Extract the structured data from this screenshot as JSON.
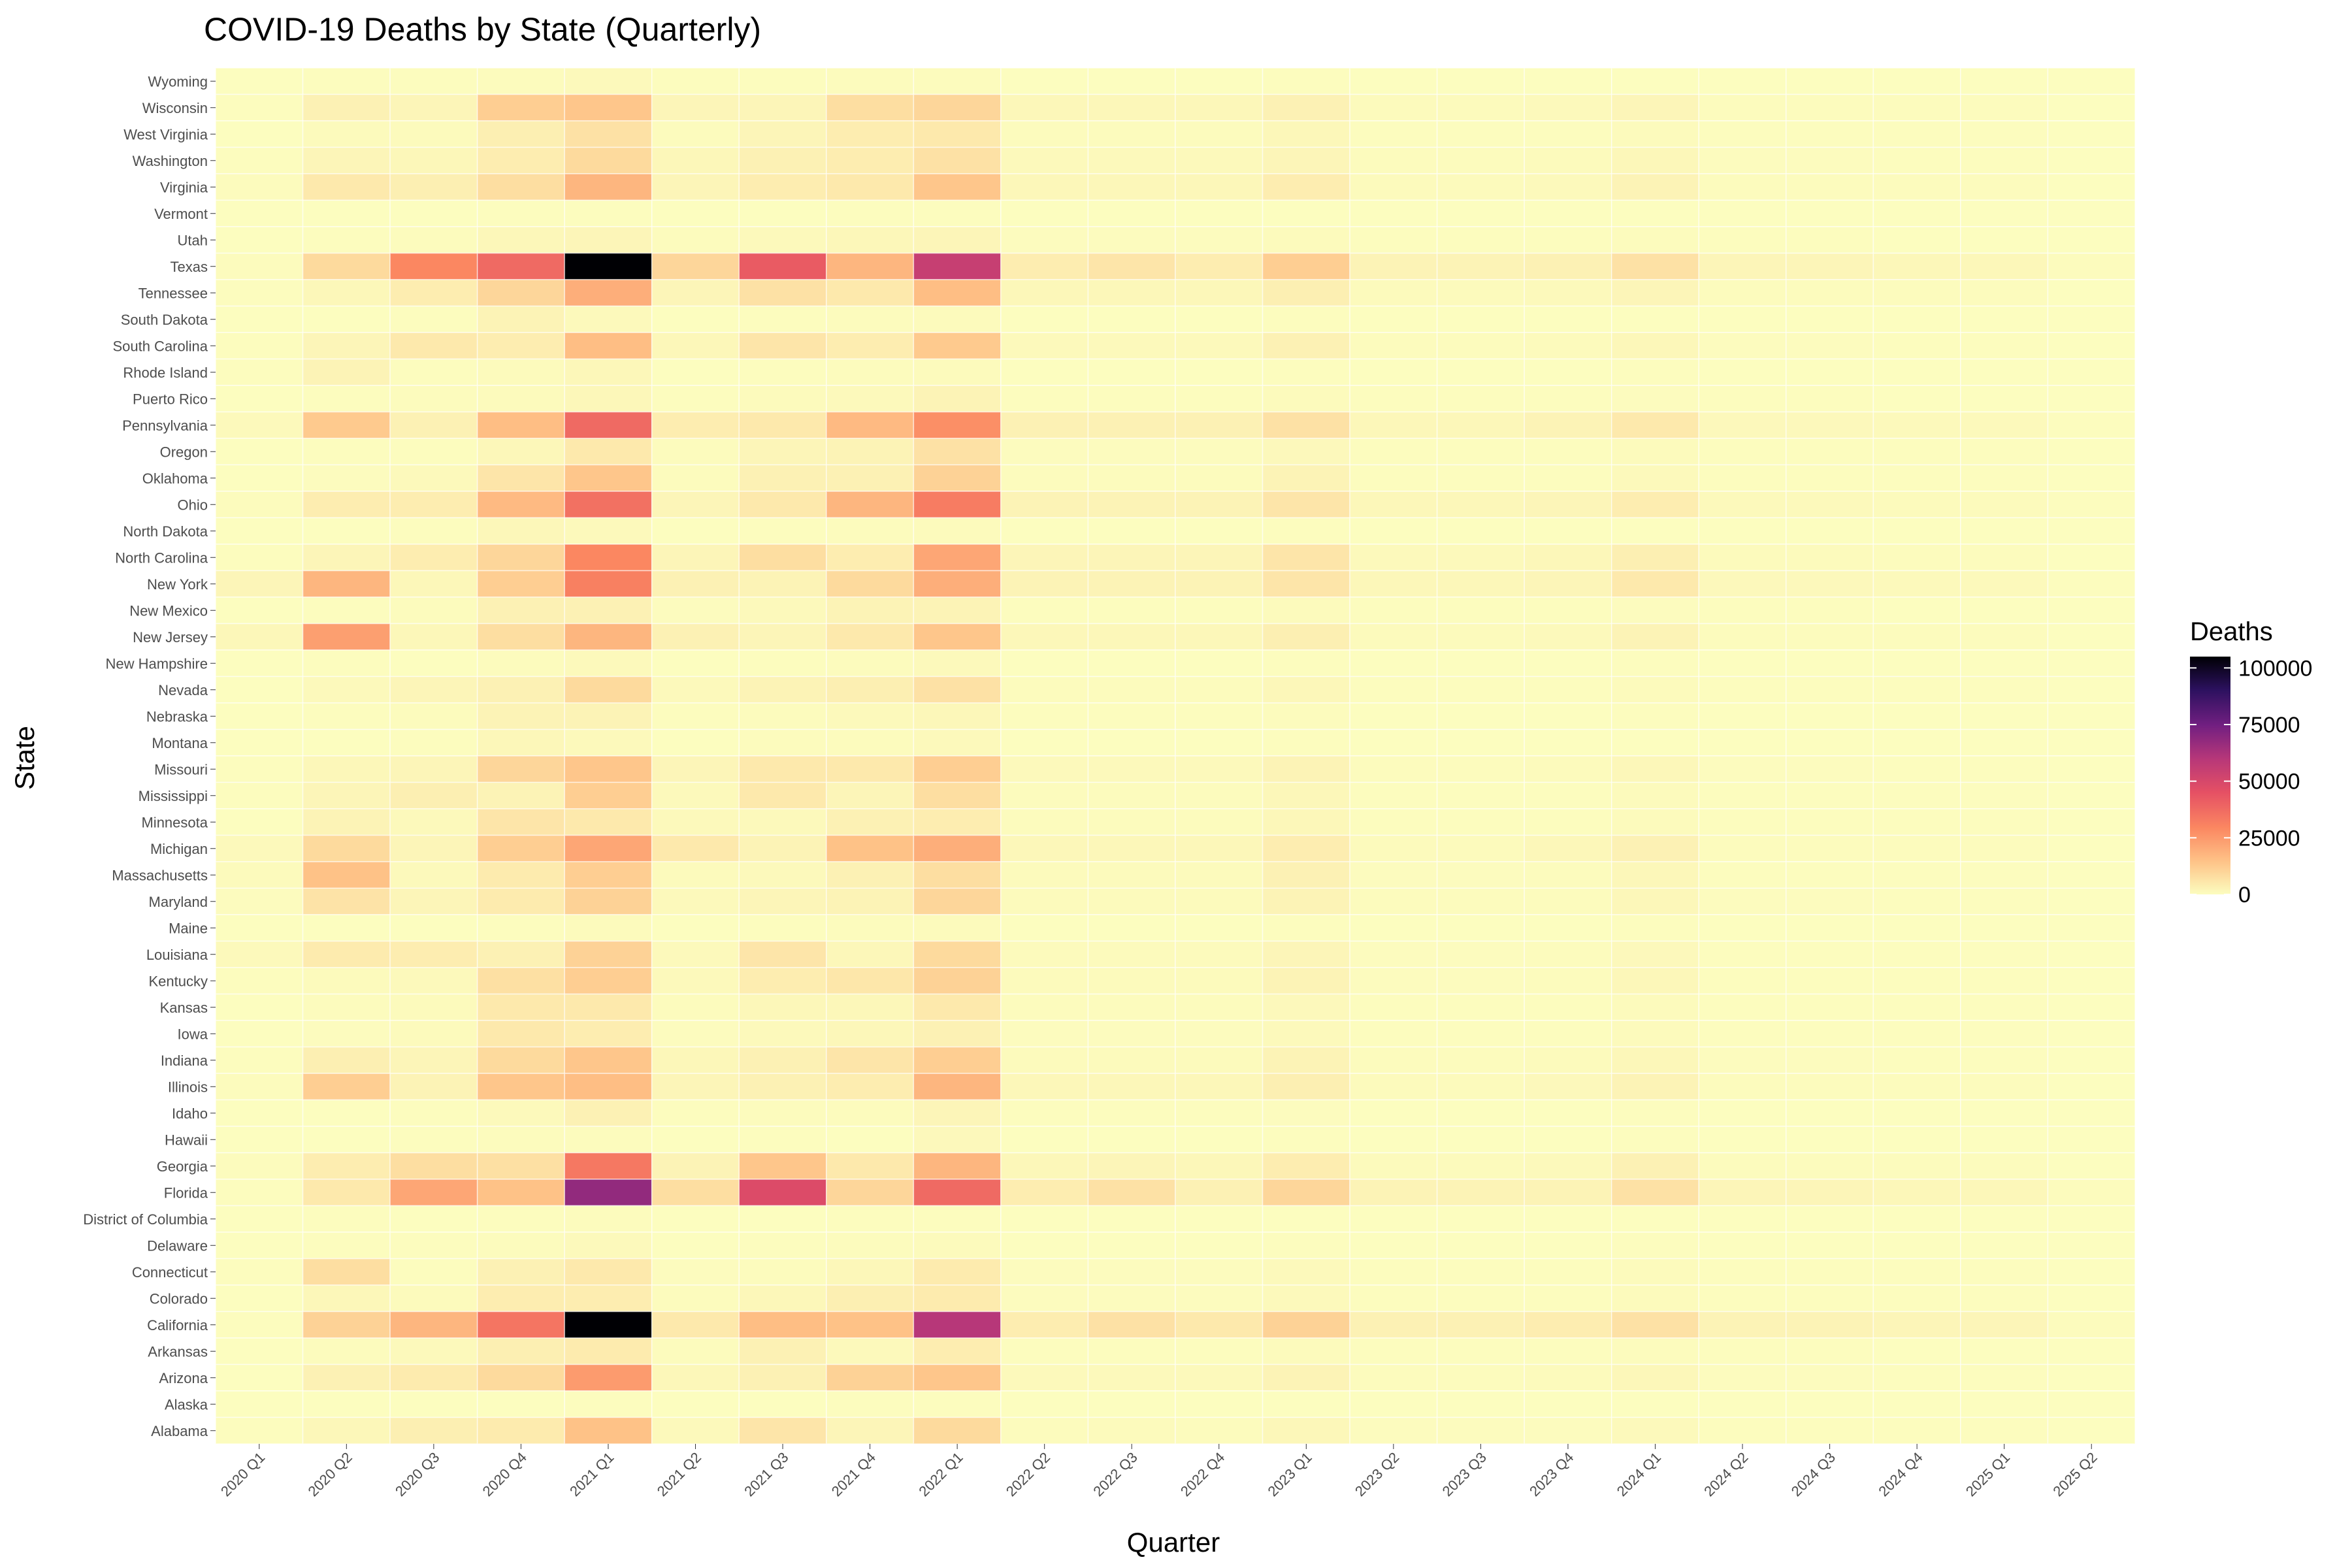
{
  "chart_data": {
    "type": "heatmap",
    "title": "COVID-19 Deaths by State (Quarterly)",
    "xlabel": "Quarter",
    "ylabel": "State",
    "legend_title": "Deaths",
    "legend_ticks": [
      0,
      25000,
      50000,
      75000,
      100000
    ],
    "color_range": [
      0,
      105000
    ],
    "legend_position": "right",
    "color_stops": [
      "#fcfdbf",
      "#fec287",
      "#fb8761",
      "#e55064",
      "#b73779",
      "#721f81",
      "#2c115f",
      "#000004"
    ],
    "quarters": [
      "2020 Q1",
      "2020 Q2",
      "2020 Q3",
      "2020 Q4",
      "2021 Q1",
      "2021 Q2",
      "2021 Q3",
      "2021 Q4",
      "2022 Q1",
      "2022 Q2",
      "2022 Q3",
      "2022 Q4",
      "2023 Q1",
      "2023 Q2",
      "2023 Q3",
      "2023 Q4",
      "2024 Q1",
      "2024 Q2",
      "2024 Q3",
      "2024 Q4",
      "2025 Q1",
      "2025 Q2"
    ],
    "states": [
      "Wyoming",
      "Wisconsin",
      "West Virginia",
      "Washington",
      "Virginia",
      "Vermont",
      "Utah",
      "Texas",
      "Tennessee",
      "South Dakota",
      "South Carolina",
      "Rhode Island",
      "Puerto Rico",
      "Pennsylvania",
      "Oregon",
      "Oklahoma",
      "Ohio",
      "North Dakota",
      "North Carolina",
      "New York",
      "New Mexico",
      "New Jersey",
      "New Hampshire",
      "Nevada",
      "Nebraska",
      "Montana",
      "Missouri",
      "Mississippi",
      "Minnesota",
      "Michigan",
      "Massachusetts",
      "Maryland",
      "Maine",
      "Louisiana",
      "Kentucky",
      "Kansas",
      "Iowa",
      "Indiana",
      "Illinois",
      "Idaho",
      "Hawaii",
      "Georgia",
      "Florida",
      "District of Columbia",
      "Delaware",
      "Connecticut",
      "Colorado",
      "California",
      "Arkansas",
      "Arizona",
      "Alaska",
      "Alabama"
    ],
    "values": [
      [
        0,
        200,
        300,
        600,
        1000,
        200,
        300,
        500,
        600,
        100,
        100,
        100,
        200,
        50,
        50,
        50,
        80,
        30,
        30,
        20,
        20,
        10
      ],
      [
        200,
        3000,
        2000,
        12000,
        14000,
        2000,
        2000,
        8000,
        10000,
        1500,
        1500,
        1500,
        3000,
        800,
        800,
        1000,
        2000,
        600,
        600,
        500,
        500,
        100
      ],
      [
        50,
        800,
        800,
        3500,
        7000,
        600,
        2000,
        4000,
        5000,
        500,
        500,
        500,
        1500,
        300,
        300,
        300,
        800,
        200,
        200,
        150,
        150,
        50
      ],
      [
        300,
        2000,
        1500,
        4000,
        9000,
        1500,
        3000,
        4000,
        7000,
        1000,
        1000,
        1000,
        2000,
        600,
        600,
        700,
        1500,
        400,
        400,
        300,
        300,
        100
      ],
      [
        500,
        5000,
        3500,
        8000,
        18000,
        2000,
        4000,
        5000,
        14000,
        1500,
        1500,
        1500,
        4000,
        800,
        800,
        1000,
        2500,
        600,
        600,
        500,
        500,
        100
      ],
      [
        30,
        100,
        50,
        200,
        300,
        50,
        100,
        200,
        300,
        50,
        50,
        50,
        100,
        20,
        20,
        30,
        50,
        20,
        20,
        10,
        10,
        0
      ],
      [
        100,
        300,
        500,
        1500,
        2000,
        500,
        1000,
        1500,
        2000,
        400,
        400,
        400,
        800,
        200,
        200,
        200,
        500,
        150,
        150,
        100,
        100,
        50
      ],
      [
        500,
        9000,
        30000,
        38000,
        105000,
        10000,
        42000,
        18000,
        55000,
        4000,
        6000,
        4000,
        12000,
        2500,
        2500,
        3000,
        7000,
        2000,
        2000,
        1500,
        1500,
        500
      ],
      [
        300,
        1500,
        4000,
        10000,
        20000,
        2000,
        7000,
        5000,
        16000,
        1500,
        1500,
        1500,
        3500,
        800,
        800,
        1000,
        2000,
        600,
        600,
        500,
        500,
        100
      ],
      [
        50,
        100,
        300,
        2500,
        1000,
        100,
        300,
        500,
        700,
        100,
        100,
        100,
        300,
        50,
        50,
        50,
        100,
        30,
        30,
        20,
        20,
        10
      ],
      [
        300,
        2000,
        5000,
        4000,
        16000,
        1500,
        6000,
        4000,
        13000,
        1000,
        1000,
        1000,
        3000,
        600,
        600,
        700,
        1500,
        400,
        400,
        300,
        300,
        100
      ],
      [
        200,
        2500,
        300,
        800,
        1500,
        100,
        200,
        500,
        800,
        100,
        100,
        100,
        300,
        50,
        50,
        50,
        150,
        30,
        30,
        20,
        20,
        10
      ],
      [
        100,
        300,
        500,
        800,
        1500,
        300,
        800,
        1000,
        2500,
        300,
        300,
        300,
        700,
        200,
        200,
        200,
        400,
        150,
        150,
        100,
        100,
        50
      ],
      [
        1000,
        13000,
        3000,
        16000,
        38000,
        4000,
        5000,
        17000,
        28000,
        3000,
        3000,
        3000,
        7000,
        1500,
        1500,
        2500,
        5000,
        1200,
        1200,
        1000,
        1000,
        200
      ],
      [
        100,
        300,
        300,
        1500,
        5000,
        500,
        2000,
        2500,
        7000,
        400,
        400,
        400,
        1200,
        300,
        300,
        300,
        700,
        200,
        200,
        150,
        150,
        50
      ],
      [
        100,
        400,
        1000,
        6000,
        14000,
        500,
        3000,
        3000,
        11000,
        500,
        500,
        500,
        2500,
        300,
        300,
        300,
        1000,
        200,
        200,
        150,
        150,
        50
      ],
      [
        500,
        4000,
        4000,
        17000,
        36000,
        2000,
        5000,
        18000,
        33000,
        2500,
        2500,
        2500,
        6000,
        1500,
        1500,
        2000,
        4000,
        1000,
        1000,
        800,
        800,
        200
      ],
      [
        50,
        100,
        300,
        1500,
        1000,
        100,
        300,
        500,
        800,
        100,
        100,
        100,
        300,
        50,
        50,
        50,
        100,
        30,
        30,
        20,
        20,
        10
      ],
      [
        300,
        2000,
        4000,
        10000,
        30000,
        2000,
        8000,
        4000,
        22000,
        2000,
        2000,
        2000,
        6000,
        1000,
        1000,
        1500,
        3500,
        800,
        800,
        600,
        600,
        100
      ],
      [
        2000,
        18000,
        1500,
        12000,
        32000,
        3000,
        2500,
        9000,
        20000,
        2500,
        2500,
        2500,
        6000,
        1500,
        1500,
        2000,
        5000,
        1200,
        1200,
        1000,
        1000,
        200
      ],
      [
        50,
        300,
        500,
        3000,
        3000,
        400,
        1000,
        2500,
        2500,
        300,
        300,
        300,
        700,
        200,
        200,
        200,
        400,
        150,
        150,
        100,
        100,
        50
      ],
      [
        1500,
        24000,
        1500,
        8000,
        18000,
        3000,
        2000,
        5000,
        14000,
        1500,
        1500,
        1500,
        3500,
        800,
        800,
        1000,
        2500,
        600,
        600,
        500,
        500,
        100
      ],
      [
        100,
        300,
        100,
        500,
        1000,
        100,
        300,
        500,
        1000,
        100,
        100,
        100,
        300,
        50,
        50,
        50,
        150,
        30,
        30,
        20,
        20,
        10
      ],
      [
        100,
        1000,
        2000,
        3000,
        9000,
        1000,
        2500,
        3500,
        7000,
        500,
        500,
        500,
        1500,
        300,
        300,
        300,
        800,
        200,
        200,
        150,
        150,
        50
      ],
      [
        50,
        300,
        500,
        2500,
        2500,
        200,
        500,
        1000,
        1500,
        200,
        200,
        200,
        500,
        100,
        100,
        100,
        300,
        80,
        80,
        50,
        50,
        20
      ],
      [
        50,
        100,
        300,
        1500,
        1000,
        100,
        500,
        600,
        1000,
        100,
        100,
        100,
        300,
        50,
        50,
        50,
        100,
        30,
        30,
        20,
        20,
        10
      ],
      [
        300,
        1500,
        2000,
        10000,
        14000,
        2000,
        5000,
        5000,
        12000,
        1000,
        1000,
        1000,
        2500,
        600,
        600,
        700,
        1500,
        400,
        400,
        300,
        300,
        100
      ],
      [
        200,
        2000,
        3500,
        2500,
        12000,
        1000,
        5000,
        2000,
        8000,
        500,
        500,
        500,
        1500,
        300,
        300,
        300,
        800,
        200,
        200,
        150,
        150,
        50
      ],
      [
        100,
        2500,
        1000,
        6000,
        5000,
        1000,
        1000,
        3000,
        4000,
        500,
        500,
        500,
        1500,
        300,
        300,
        300,
        800,
        200,
        200,
        150,
        150,
        50
      ],
      [
        1000,
        9000,
        2000,
        12000,
        22000,
        5000,
        2500,
        15000,
        20000,
        1500,
        1500,
        1500,
        4000,
        800,
        800,
        1500,
        3000,
        600,
        600,
        500,
        500,
        100
      ],
      [
        800,
        15000,
        1000,
        4500,
        12000,
        800,
        1000,
        3000,
        8000,
        700,
        700,
        700,
        3000,
        400,
        400,
        500,
        1500,
        300,
        300,
        200,
        200,
        50
      ],
      [
        400,
        6500,
        2000,
        4500,
        11000,
        1000,
        2000,
        2500,
        10000,
        800,
        800,
        800,
        2500,
        500,
        500,
        600,
        1500,
        400,
        400,
        300,
        300,
        100
      ],
      [
        50,
        100,
        100,
        300,
        700,
        100,
        300,
        500,
        800,
        100,
        100,
        100,
        300,
        50,
        50,
        50,
        150,
        30,
        30,
        20,
        20,
        10
      ],
      [
        1000,
        4500,
        4000,
        3000,
        11000,
        1000,
        6000,
        1500,
        9000,
        700,
        700,
        700,
        2000,
        400,
        400,
        500,
        1200,
        300,
        300,
        200,
        200,
        50
      ],
      [
        200,
        800,
        1000,
        7500,
        12000,
        1000,
        4000,
        5500,
        11000,
        700,
        700,
        700,
        2500,
        400,
        400,
        600,
        1500,
        300,
        300,
        200,
        200,
        50
      ],
      [
        100,
        500,
        800,
        5000,
        5000,
        500,
        1500,
        1500,
        5000,
        500,
        500,
        500,
        1200,
        300,
        300,
        300,
        700,
        200,
        200,
        150,
        150,
        50
      ],
      [
        100,
        400,
        800,
        5000,
        4000,
        400,
        1000,
        1500,
        3000,
        400,
        400,
        400,
        1000,
        300,
        300,
        300,
        700,
        200,
        200,
        150,
        150,
        50
      ],
      [
        300,
        3500,
        2000,
        9000,
        14000,
        1500,
        3000,
        6000,
        12000,
        700,
        700,
        700,
        2500,
        500,
        500,
        800,
        1500,
        400,
        400,
        300,
        300,
        100
      ],
      [
        500,
        12000,
        2500,
        14000,
        16000,
        2000,
        3000,
        4000,
        18000,
        1500,
        1500,
        1500,
        3500,
        800,
        800,
        1200,
        2500,
        600,
        600,
        500,
        500,
        100
      ],
      [
        50,
        100,
        300,
        1000,
        3000,
        200,
        500,
        500,
        2000,
        200,
        200,
        200,
        400,
        100,
        100,
        100,
        200,
        80,
        80,
        50,
        50,
        20
      ],
      [
        20,
        100,
        300,
        500,
        500,
        100,
        300,
        100,
        1200,
        100,
        100,
        100,
        300,
        50,
        50,
        50,
        150,
        30,
        30,
        20,
        20,
        10
      ],
      [
        500,
        4000,
        8000,
        7500,
        34000,
        2500,
        14000,
        5000,
        18000,
        1500,
        2000,
        1500,
        4000,
        800,
        800,
        1000,
        3000,
        600,
        600,
        500,
        500,
        100
      ],
      [
        300,
        5000,
        22000,
        15000,
        68000,
        8000,
        48000,
        10000,
        38000,
        4000,
        7000,
        3000,
        10000,
        2500,
        2500,
        2500,
        7000,
        2000,
        2000,
        1500,
        1500,
        500
      ],
      [
        50,
        300,
        100,
        300,
        500,
        100,
        100,
        200,
        300,
        50,
        50,
        50,
        100,
        20,
        20,
        30,
        50,
        20,
        20,
        10,
        10,
        0
      ],
      [
        50,
        300,
        300,
        500,
        1000,
        100,
        300,
        500,
        700,
        100,
        100,
        100,
        300,
        50,
        50,
        50,
        150,
        30,
        30,
        20,
        20,
        10
      ],
      [
        300,
        8000,
        300,
        3000,
        5000,
        400,
        500,
        1500,
        4500,
        400,
        400,
        400,
        1000,
        300,
        300,
        300,
        700,
        200,
        200,
        150,
        150,
        50
      ],
      [
        100,
        1500,
        700,
        4000,
        4000,
        500,
        1500,
        3500,
        4500,
        400,
        400,
        400,
        1000,
        300,
        300,
        300,
        700,
        200,
        200,
        150,
        150,
        50
      ],
      [
        200,
        11000,
        18000,
        35000,
        105000,
        5000,
        16000,
        15000,
        60000,
        4000,
        7000,
        5000,
        11000,
        3000,
        3000,
        4000,
        7000,
        2500,
        2500,
        2000,
        2000,
        500
      ],
      [
        100,
        500,
        1000,
        3500,
        4500,
        500,
        3000,
        1000,
        4000,
        300,
        300,
        300,
        800,
        200,
        200,
        200,
        500,
        150,
        150,
        100,
        100,
        50
      ],
      [
        100,
        3000,
        4500,
        9000,
        25000,
        1500,
        3000,
        11000,
        14000,
        1000,
        1000,
        1000,
        2500,
        600,
        600,
        800,
        1500,
        400,
        400,
        300,
        300,
        100
      ],
      [
        20,
        50,
        100,
        100,
        300,
        50,
        100,
        200,
        300,
        30,
        30,
        30,
        50,
        20,
        20,
        20,
        30,
        10,
        10,
        10,
        10,
        0
      ],
      [
        200,
        1500,
        3500,
        4500,
        15000,
        1000,
        6000,
        2000,
        9000,
        500,
        700,
        500,
        1500,
        400,
        400,
        400,
        1000,
        300,
        300,
        200,
        200,
        50
      ]
    ]
  }
}
